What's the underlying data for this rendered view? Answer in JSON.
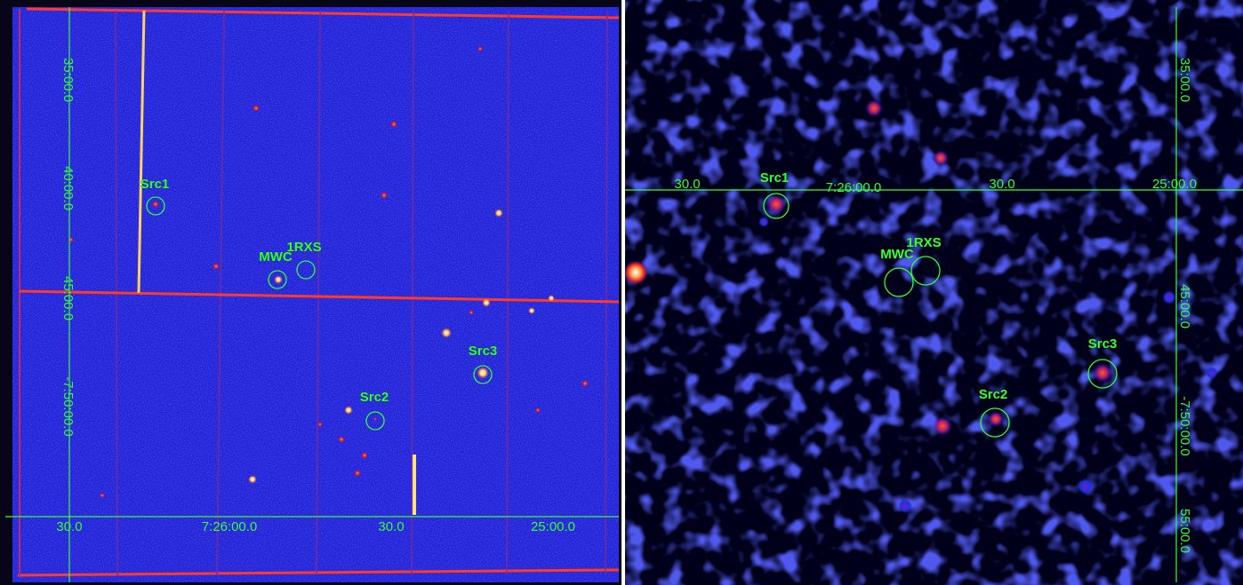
{
  "colors": {
    "overlay": "#33ff33",
    "left_background": "#1c22d8",
    "right_background": "#00001a",
    "hot_source": "#ffffff",
    "warm_source": "#ff2a1a"
  },
  "panels": [
    {
      "id": "left",
      "ra_ticks": [
        "30.0",
        "7:26:00.0",
        "30.0",
        "25:00.0"
      ],
      "dec_ticks": [
        "35:00.0",
        "40:00.0",
        "45:00.0",
        "-7:50:00.0"
      ],
      "sources": [
        {
          "key": "src1",
          "label": "Src1"
        },
        {
          "key": "mwc",
          "label": "MWC"
        },
        {
          "key": "rxs",
          "label": "1RXS"
        },
        {
          "key": "src3",
          "label": "Src3"
        },
        {
          "key": "src2",
          "label": "Src2"
        }
      ]
    },
    {
      "id": "right",
      "ra_ticks": [
        "30.0",
        "7:26:00.0",
        "30.0",
        "25:00.0"
      ],
      "dec_ticks": [
        "35:00.0",
        "45:00.0",
        "-7:50:00.0",
        "55:00.0"
      ],
      "sources": [
        {
          "key": "src1",
          "label": "Src1"
        },
        {
          "key": "mwc",
          "label": "MWC"
        },
        {
          "key": "rxs",
          "label": "1RXS"
        },
        {
          "key": "src3",
          "label": "Src3"
        },
        {
          "key": "src2",
          "label": "Src2"
        }
      ]
    }
  ]
}
